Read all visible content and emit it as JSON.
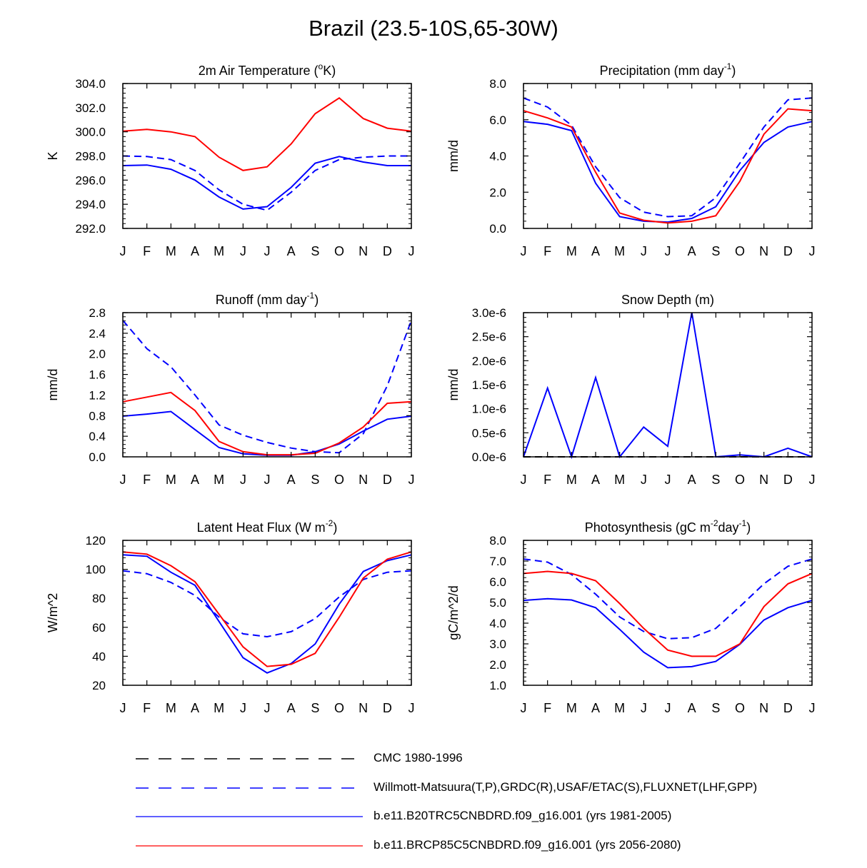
{
  "title": "Brazil (23.5-10S,65-30W)",
  "month_labels": [
    "J",
    "F",
    "M",
    "A",
    "M",
    "J",
    "J",
    "A",
    "S",
    "O",
    "N",
    "D",
    "J"
  ],
  "colors": {
    "cmc": "#000000",
    "obs": "#0000ff",
    "hist": "#0000ff",
    "future": "#ff0000",
    "axis": "#000000"
  },
  "legend": [
    {
      "key": "cmc",
      "label": "CMC 1980-1996",
      "color": "#000000",
      "dash": true
    },
    {
      "key": "obs",
      "label": "Willmott-Matsuura(T,P),GRDC(R),USAF/ETAC(S),FLUXNET(LHF,GPP)",
      "color": "#0000ff",
      "dash": true
    },
    {
      "key": "hist",
      "label": "b.e11.B20TRC5CNBDRD.f09_g16.001 (yrs 1981-2005)",
      "color": "#0000ff",
      "dash": false
    },
    {
      "key": "future",
      "label": "b.e11.BRCP85C5CNBDRD.f09_g16.001 (yrs 2056-2080)",
      "color": "#ff0000",
      "dash": false
    }
  ],
  "chart_data": [
    {
      "id": "temp",
      "type": "line",
      "title": "2m Air Temperature (",
      "title_sup": "o",
      "title_end": "K)",
      "ylabel": "K",
      "ylim": [
        292,
        304
      ],
      "yticks": [
        292,
        294,
        296,
        298,
        300,
        302,
        304
      ],
      "ytick_labels": [
        "292.0",
        "294.0",
        "296.0",
        "298.0",
        "300.0",
        "302.0",
        "304.0"
      ],
      "series": [
        {
          "name": "obs",
          "values": [
            298.0,
            297.95,
            297.7,
            296.8,
            295.2,
            294.0,
            293.5,
            295.0,
            296.8,
            297.7,
            297.9,
            298.0,
            298.0
          ]
        },
        {
          "name": "hist",
          "values": [
            297.2,
            297.25,
            296.9,
            296.0,
            294.6,
            293.6,
            293.8,
            295.4,
            297.4,
            297.95,
            297.5,
            297.2,
            297.2
          ]
        },
        {
          "name": "future",
          "values": [
            300.05,
            300.2,
            300.0,
            299.6,
            297.9,
            296.8,
            297.1,
            299.0,
            301.5,
            302.8,
            301.1,
            300.3,
            300.05
          ]
        }
      ]
    },
    {
      "id": "precip",
      "type": "line",
      "title": "Precipitation (mm day",
      "title_sup": "-1",
      "title_end": ")",
      "ylabel": "mm/d",
      "ylim": [
        0,
        8
      ],
      "yticks": [
        0,
        2,
        4,
        6,
        8
      ],
      "ytick_labels": [
        "0.0",
        "2.0",
        "4.0",
        "6.0",
        "8.0"
      ],
      "series": [
        {
          "name": "obs",
          "values": [
            7.2,
            6.7,
            5.7,
            3.4,
            1.7,
            0.9,
            0.65,
            0.7,
            1.7,
            3.6,
            5.6,
            7.1,
            7.2
          ]
        },
        {
          "name": "hist",
          "values": [
            5.9,
            5.75,
            5.4,
            2.5,
            0.65,
            0.4,
            0.35,
            0.55,
            1.2,
            3.2,
            4.75,
            5.6,
            5.9
          ]
        },
        {
          "name": "future",
          "values": [
            6.5,
            6.1,
            5.6,
            3.1,
            0.85,
            0.45,
            0.3,
            0.4,
            0.7,
            2.6,
            5.2,
            6.6,
            6.5
          ]
        }
      ]
    },
    {
      "id": "runoff",
      "type": "line",
      "title": "Runoff (mm day",
      "title_sup": "-1",
      "title_end": ")",
      "ylabel": "mm/d",
      "ylim": [
        0,
        2.8
      ],
      "yticks": [
        0,
        0.4,
        0.8,
        1.2,
        1.6,
        2.0,
        2.4,
        2.8
      ],
      "ytick_labels": [
        "0.0",
        "0.4",
        "0.8",
        "1.2",
        "1.6",
        "2.0",
        "2.4",
        "2.8"
      ],
      "series": [
        {
          "name": "obs",
          "values": [
            2.65,
            2.1,
            1.75,
            1.2,
            0.62,
            0.42,
            0.28,
            0.17,
            0.1,
            0.08,
            0.45,
            1.38,
            2.65
          ]
        },
        {
          "name": "hist",
          "values": [
            0.79,
            0.83,
            0.88,
            0.53,
            0.18,
            0.06,
            0.03,
            0.03,
            0.1,
            0.25,
            0.5,
            0.73,
            0.79
          ]
        },
        {
          "name": "future",
          "values": [
            1.07,
            1.16,
            1.25,
            0.9,
            0.3,
            0.1,
            0.04,
            0.04,
            0.07,
            0.27,
            0.58,
            1.04,
            1.07
          ]
        }
      ]
    },
    {
      "id": "snow",
      "type": "line",
      "title": "Snow Depth (m)",
      "title_sup": "",
      "title_end": "",
      "ylabel": "mm/d",
      "ylim": [
        0,
        3e-06
      ],
      "yticks": [
        0,
        5e-07,
        1e-06,
        1.5e-06,
        2e-06,
        2.5e-06,
        3e-06
      ],
      "ytick_labels": [
        "0.0e-6",
        "0.5e-6",
        "1.0e-6",
        "1.5e-6",
        "2.0e-6",
        "2.5e-6",
        "3.0e-6"
      ],
      "series": [
        {
          "name": "cmc",
          "values": [
            0,
            0,
            0,
            0,
            0,
            0,
            0,
            0,
            0,
            0,
            0,
            0,
            0
          ]
        },
        {
          "name": "hist",
          "values": [
            0,
            1.43e-06,
            0,
            1.65e-06,
            0,
            6.2e-07,
            2.2e-07,
            3e-06,
            0,
            4e-08,
            0,
            1.8e-07,
            0
          ]
        }
      ]
    },
    {
      "id": "lhf",
      "type": "line",
      "title": "Latent Heat Flux (W m",
      "title_sup": "-2",
      "title_end": ")",
      "ylabel": "W/m^2",
      "ylim": [
        20,
        120
      ],
      "yticks": [
        20,
        40,
        60,
        80,
        100,
        120
      ],
      "ytick_labels": [
        "20",
        "40",
        "60",
        "80",
        "100",
        "120"
      ],
      "series": [
        {
          "name": "obs",
          "values": [
            99,
            97,
            91,
            82,
            67,
            55.5,
            53.5,
            57,
            66,
            81,
            93,
            98,
            99
          ]
        },
        {
          "name": "hist",
          "values": [
            110,
            109,
            98,
            89,
            64,
            39,
            28.5,
            35,
            48.5,
            76,
            98.5,
            106,
            110
          ]
        },
        {
          "name": "future",
          "values": [
            112,
            110.5,
            102.5,
            91.5,
            69,
            46.5,
            33,
            34.5,
            42,
            67,
            94,
            107,
            112
          ]
        }
      ]
    },
    {
      "id": "gpp",
      "type": "line",
      "title": "Photosynthesis (gC m",
      "title_sup": "-2",
      "title_end": "day",
      "title_sup2": "-1",
      "title_end2": ")",
      "ylabel": "gC/m^2/d",
      "ylim": [
        1,
        8
      ],
      "yticks": [
        1,
        2,
        3,
        4,
        5,
        6,
        7,
        8
      ],
      "ytick_labels": [
        "1.0",
        "2.0",
        "3.0",
        "4.0",
        "5.0",
        "6.0",
        "7.0",
        "8.0"
      ],
      "series": [
        {
          "name": "obs",
          "values": [
            7.1,
            6.95,
            6.35,
            5.4,
            4.3,
            3.6,
            3.25,
            3.3,
            3.75,
            4.8,
            5.9,
            6.75,
            7.1
          ]
        },
        {
          "name": "hist",
          "values": [
            5.1,
            5.18,
            5.12,
            4.75,
            3.7,
            2.6,
            1.85,
            1.9,
            2.15,
            2.98,
            4.15,
            4.75,
            5.1
          ]
        },
        {
          "name": "future",
          "values": [
            6.4,
            6.5,
            6.4,
            6.05,
            4.95,
            3.75,
            2.7,
            2.4,
            2.4,
            3.0,
            4.8,
            5.9,
            6.4
          ]
        }
      ]
    }
  ]
}
